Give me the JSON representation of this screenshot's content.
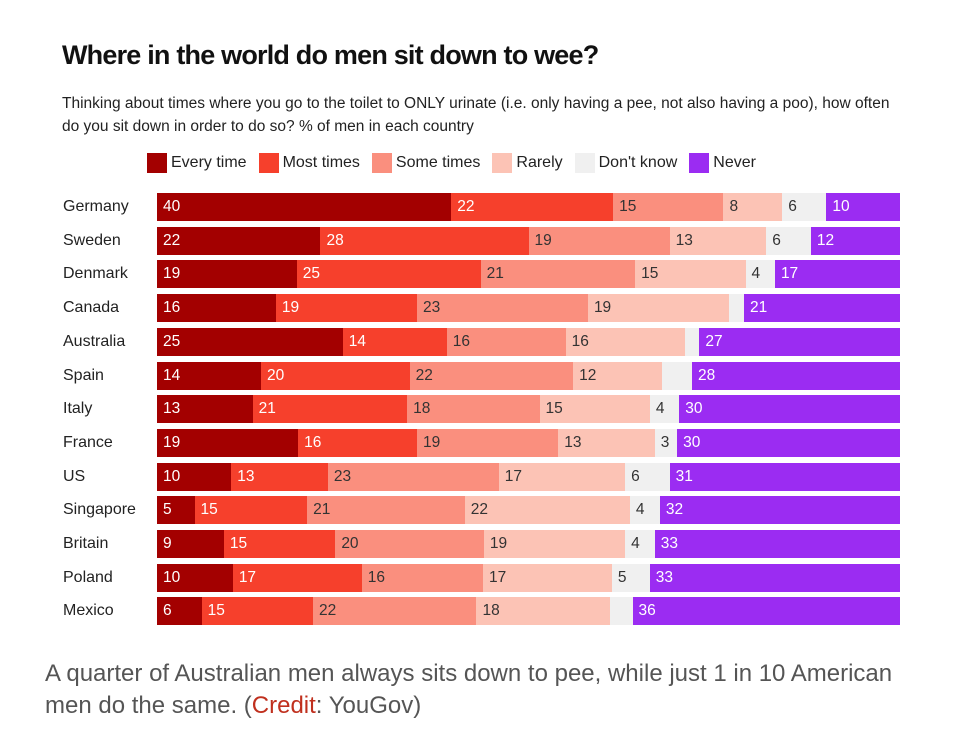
{
  "caption": {
    "text_before": "A quarter of Australian men always sits down to pee, while just 1 in 10 American men do the same. (",
    "credit_link": "Credit",
    "text_after": ": YouGov)"
  },
  "chart_data": {
    "type": "bar",
    "orientation": "horizontal",
    "stacked": true,
    "title": "Where in the world do men sit down to wee?",
    "subtitle": "Thinking about times where you go to the toilet to ONLY urinate (i.e. only having a pee, not also having a poo), how often do you sit down in order to do so? % of men in each country",
    "legend_position": "top",
    "grid": false,
    "categories": [
      "Germany",
      "Sweden",
      "Denmark",
      "Canada",
      "Australia",
      "Spain",
      "Italy",
      "France",
      "US",
      "Singapore",
      "Britain",
      "Poland",
      "Mexico"
    ],
    "series": [
      {
        "name": "Every time",
        "color": "#a30000",
        "label_color": "#ffffff",
        "values": [
          40,
          22,
          19,
          16,
          25,
          14,
          13,
          19,
          10,
          5,
          9,
          10,
          6
        ]
      },
      {
        "name": "Most times",
        "color": "#f6402c",
        "label_color": "#ffffff",
        "values": [
          22,
          28,
          25,
          19,
          14,
          20,
          21,
          16,
          13,
          15,
          15,
          17,
          15
        ]
      },
      {
        "name": "Some times",
        "color": "#fa8f7e",
        "label_color": "#333333",
        "values": [
          15,
          19,
          21,
          23,
          16,
          22,
          18,
          19,
          23,
          21,
          20,
          16,
          22
        ]
      },
      {
        "name": "Rarely",
        "color": "#fcc3b5",
        "label_color": "#333333",
        "values": [
          8,
          13,
          15,
          19,
          16,
          12,
          15,
          13,
          17,
          22,
          19,
          17,
          18
        ]
      },
      {
        "name": "Don't know",
        "color": "#f0f0f0",
        "label_color": "#333333",
        "values": [
          6,
          6,
          4,
          null,
          null,
          null,
          4,
          3,
          6,
          4,
          4,
          5,
          null
        ]
      },
      {
        "name": "Never",
        "color": "#9b2cf2",
        "label_color": "#ffffff",
        "values": [
          10,
          12,
          17,
          21,
          27,
          28,
          30,
          30,
          31,
          32,
          33,
          33,
          36
        ]
      }
    ]
  }
}
